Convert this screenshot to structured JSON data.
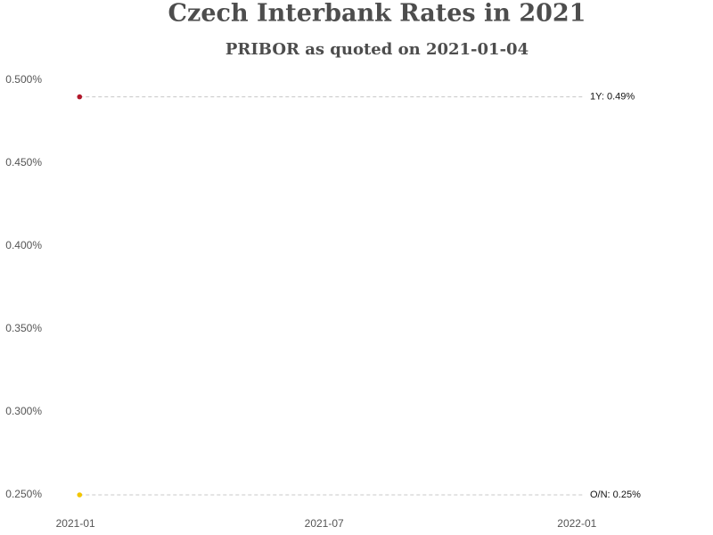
{
  "chart_data": {
    "type": "scatter",
    "title": "Czech Interbank Rates in 2021",
    "subtitle": "PRIBOR as quoted on 2021-01-04",
    "series": [
      {
        "name": "1Y",
        "color": "#b2182b",
        "x": [
          "2021-01-04"
        ],
        "values": [
          0.49
        ],
        "value_labels": [
          "1Y:  0.49%"
        ]
      },
      {
        "name": "O/N",
        "color": "#f2c500",
        "x": [
          "2021-01-04"
        ],
        "values": [
          0.25
        ],
        "value_labels": [
          "O/N:  0.25%"
        ]
      }
    ],
    "xlim": [
      "2020-12-16",
      "2022-01-06"
    ],
    "xticks": [
      "2021-01",
      "2021-07",
      "2022-01"
    ],
    "ylim": [
      0.25,
      0.5
    ],
    "yticks": [
      {
        "value": 0.25,
        "label": "0.250%"
      },
      {
        "value": 0.3,
        "label": "0.300%"
      },
      {
        "value": 0.35,
        "label": "0.350%"
      },
      {
        "value": 0.4,
        "label": "0.400%"
      },
      {
        "value": 0.45,
        "label": "0.450%"
      },
      {
        "value": 0.5,
        "label": "0.500%"
      }
    ],
    "guide_lines": true
  }
}
